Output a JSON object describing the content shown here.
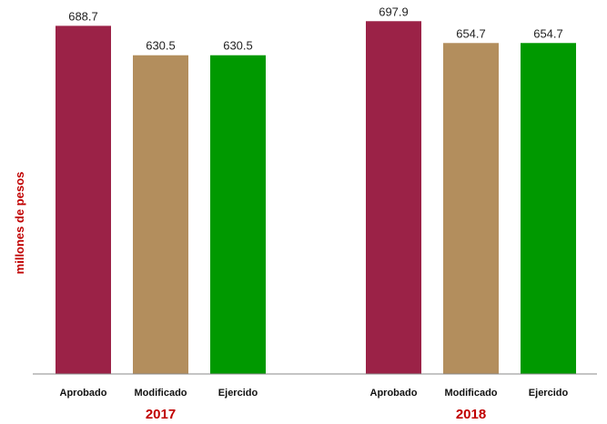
{
  "chart_data": {
    "type": "bar",
    "ylabel": "millones de pesos",
    "groups": [
      {
        "label": "2017",
        "bars": [
          {
            "category": "Aprobado",
            "value": 688.7,
            "value_label": "688.7",
            "color": "#9B2247"
          },
          {
            "category": "Modificado",
            "value": 630.5,
            "value_label": "630.5",
            "color": "#B38E5D"
          },
          {
            "category": "Ejercido",
            "value": 630.5,
            "value_label": "630.5",
            "color": "#009900"
          }
        ]
      },
      {
        "label": "2018",
        "bars": [
          {
            "category": "Aprobado",
            "value": 697.9,
            "value_label": "697.9",
            "color": "#9B2247"
          },
          {
            "category": "Modificado",
            "value": 654.7,
            "value_label": "654.7",
            "color": "#B38E5D"
          },
          {
            "category": "Ejercido",
            "value": 654.7,
            "value_label": "654.7",
            "color": "#009900"
          }
        ]
      }
    ],
    "ylim": [
      0,
      720
    ],
    "grid": false,
    "label_color": "#C00000"
  }
}
